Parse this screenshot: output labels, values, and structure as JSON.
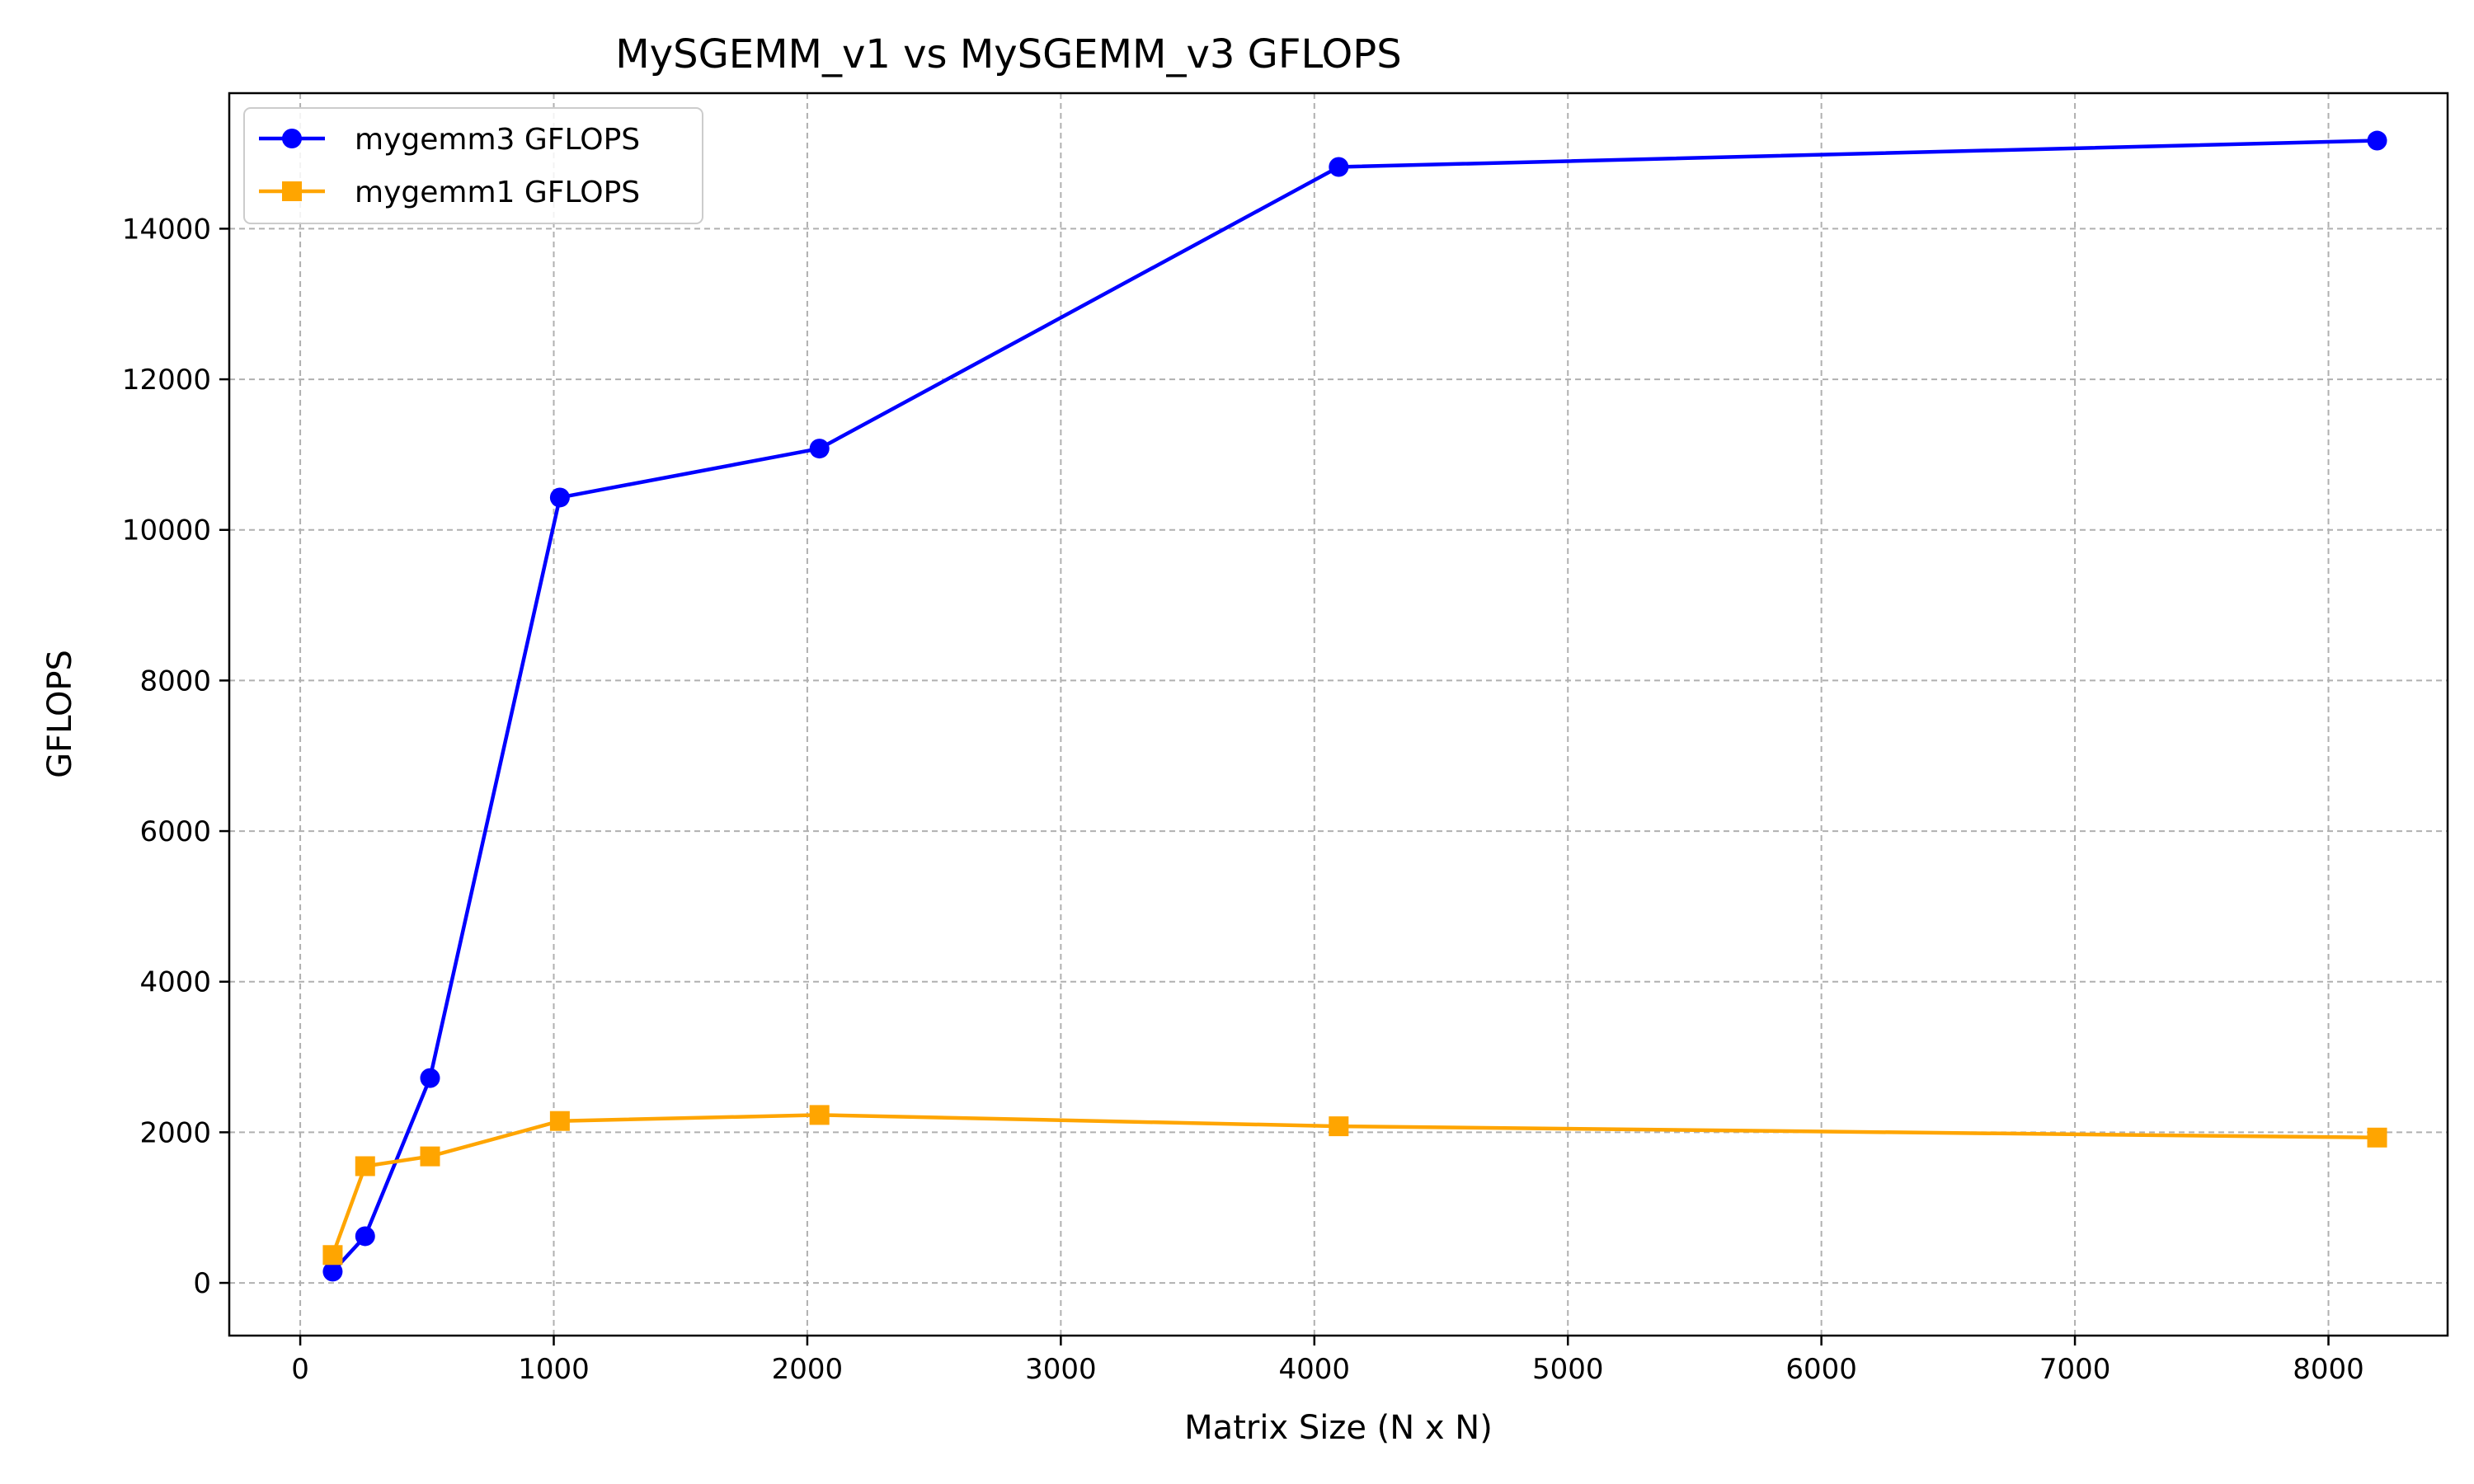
{
  "chart_data": {
    "type": "line",
    "title": "MySGEMM_v1 vs MySGEMM_v3 GFLOPS",
    "xlabel": "Matrix Size (N x N)",
    "ylabel": "GFLOPS",
    "xlim": [
      -280,
      8470
    ],
    "ylim": [
      -700,
      15800
    ],
    "x_ticks": [
      0,
      1000,
      2000,
      3000,
      4000,
      5000,
      6000,
      7000,
      8000
    ],
    "y_ticks": [
      0,
      2000,
      4000,
      6000,
      8000,
      10000,
      12000,
      14000
    ],
    "x_tick_labels": [
      "0",
      "1000",
      "2000",
      "3000",
      "4000",
      "5000",
      "6000",
      "7000",
      "8000"
    ],
    "y_tick_labels": [
      "0",
      "2000",
      "4000",
      "6000",
      "8000",
      "10000",
      "12000",
      "14000"
    ],
    "grid": true,
    "legend_position": "upper-left",
    "series": [
      {
        "name": "mygemm3 GFLOPS",
        "color": "#0000ff",
        "marker": "circle",
        "x": [
          128,
          256,
          512,
          1024,
          2048,
          4096,
          8192
        ],
        "y": [
          150,
          620,
          2720,
          10430,
          11080,
          14820,
          15170
        ]
      },
      {
        "name": "mygemm1 GFLOPS",
        "color": "#ffa500",
        "marker": "square",
        "x": [
          128,
          256,
          512,
          1024,
          2048,
          4096,
          8192
        ],
        "y": [
          370,
          1550,
          1680,
          2150,
          2230,
          2080,
          1930
        ]
      }
    ]
  }
}
